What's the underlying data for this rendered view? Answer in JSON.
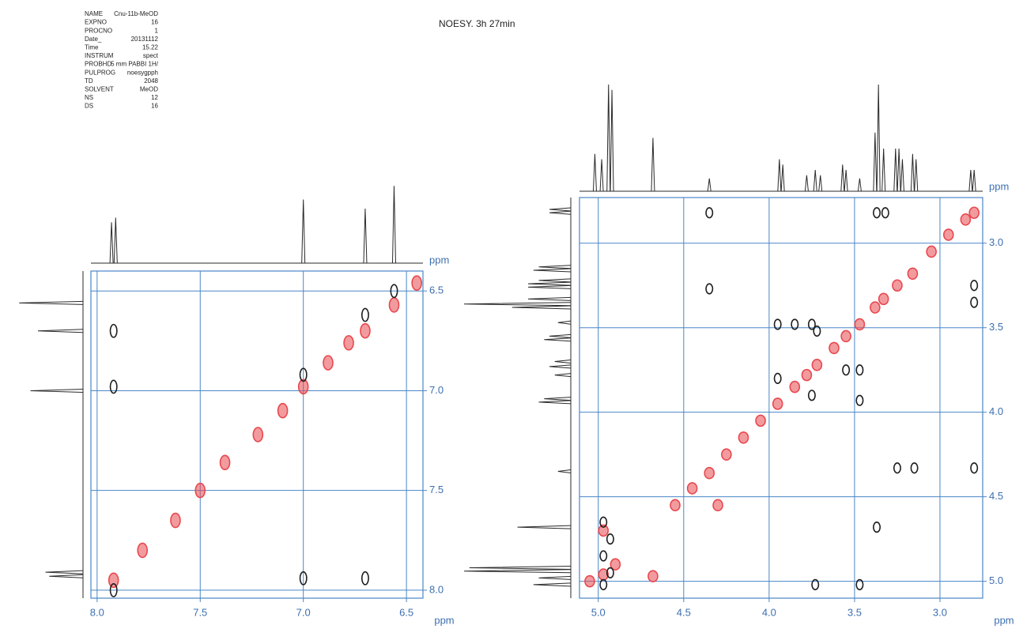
{
  "title": "NOESY. 3h 27min",
  "header": {
    "rows": [
      [
        "NAME",
        "Cnu-11b-MeOD"
      ],
      [
        "EXPNO",
        "16"
      ],
      [
        "PROCNO",
        "1"
      ],
      [
        "Date_",
        "20131112"
      ],
      [
        "Time",
        "15.22"
      ],
      [
        "INSTRUM",
        "spect"
      ],
      [
        "PROBHD",
        "5 mm PABBI 1H/"
      ],
      [
        "PULPROG",
        "noesygpph"
      ],
      [
        "TD",
        "2048"
      ],
      [
        "SOLVENT",
        "MeOD"
      ],
      [
        "NS",
        "12"
      ],
      [
        "DS",
        "16"
      ]
    ]
  },
  "chart_data": [
    {
      "type": "contour",
      "x_label": "ppm",
      "y_label": "ppm",
      "grid": true,
      "grid_color": "#4a86c8",
      "xlim": [
        8.03,
        6.42
      ],
      "ylim": [
        8.04,
        6.4
      ],
      "xticks": [
        {
          "value": 8.0,
          "label": "8.0"
        },
        {
          "value": 7.5,
          "label": "7.5"
        },
        {
          "value": 7.0,
          "label": "7.0"
        },
        {
          "value": 6.5,
          "label": "6.5"
        }
      ],
      "yticks": [
        {
          "value": 6.5,
          "label": "6.5"
        },
        {
          "value": 7.0,
          "label": "7.0"
        },
        {
          "value": 7.5,
          "label": "7.5"
        },
        {
          "value": 8.0,
          "label": "8.0"
        }
      ],
      "peaks": {
        "positive": {
          "color": "#e8484f",
          "x": [
            7.92,
            7.78,
            7.62,
            7.5,
            7.38,
            7.22,
            7.1,
            7.0,
            6.88,
            6.78,
            6.7,
            6.56,
            6.45
          ],
          "y": [
            7.95,
            7.8,
            7.65,
            7.5,
            7.36,
            7.22,
            7.1,
            6.98,
            6.86,
            6.76,
            6.7,
            6.57,
            6.46
          ]
        },
        "negative": {
          "color": "#1e1e1e",
          "x": [
            7.92,
            7.92,
            7.0,
            6.7,
            7.92,
            7.0,
            6.7,
            6.56
          ],
          "y": [
            6.7,
            6.98,
            7.94,
            7.94,
            8.0,
            6.92,
            6.62,
            6.5
          ]
        }
      },
      "projection": {
        "color": "#2a2a2a",
        "shift": [
          7.93,
          7.91,
          7.0,
          6.7,
          6.56
        ],
        "intensity": [
          0.45,
          0.5,
          0.7,
          0.6,
          0.85
        ]
      }
    },
    {
      "type": "contour",
      "x_label": "ppm",
      "y_label": "ppm",
      "grid": true,
      "grid_color": "#4a86c8",
      "xlim": [
        5.11,
        2.75
      ],
      "ylim": [
        5.1,
        2.73
      ],
      "xticks": [
        {
          "value": 5.0,
          "label": "5.0"
        },
        {
          "value": 4.5,
          "label": "4.5"
        },
        {
          "value": 4.0,
          "label": "4.0"
        },
        {
          "value": 3.5,
          "label": "3.5"
        },
        {
          "value": 3.0,
          "label": "3.0"
        }
      ],
      "yticks": [
        {
          "value": 3.0,
          "label": "3.0"
        },
        {
          "value": 3.5,
          "label": "3.5"
        },
        {
          "value": 4.0,
          "label": "4.0"
        },
        {
          "value": 4.5,
          "label": "4.5"
        },
        {
          "value": 5.0,
          "label": "5.0"
        }
      ],
      "peaks": {
        "positive": {
          "color": "#e8484f",
          "x": [
            5.05,
            4.97,
            4.9,
            4.68,
            4.97,
            4.55,
            4.45,
            4.35,
            4.25,
            4.15,
            4.05,
            3.95,
            3.85,
            3.78,
            3.72,
            3.62,
            3.55,
            3.47,
            3.38,
            3.33,
            3.25,
            3.16,
            3.05,
            2.95,
            2.85,
            2.8,
            4.3
          ],
          "y": [
            5.0,
            4.96,
            4.9,
            4.97,
            4.7,
            4.55,
            4.45,
            4.36,
            4.25,
            4.15,
            4.05,
            3.95,
            3.85,
            3.78,
            3.72,
            3.62,
            3.55,
            3.48,
            3.38,
            3.33,
            3.25,
            3.18,
            3.05,
            2.95,
            2.86,
            2.82,
            4.55
          ]
        },
        "negative": {
          "color": "#1e1e1e",
          "x": [
            4.35,
            3.37,
            3.32,
            4.35,
            3.95,
            3.85,
            3.75,
            3.72,
            3.95,
            3.75,
            3.55,
            3.47,
            3.47,
            3.25,
            3.15,
            2.8,
            2.8,
            2.8,
            3.37,
            3.47,
            3.73,
            4.97,
            4.97,
            4.97,
            4.93,
            4.93
          ],
          "y": [
            2.82,
            2.82,
            2.82,
            3.27,
            3.48,
            3.48,
            3.48,
            3.52,
            3.8,
            3.9,
            3.75,
            3.75,
            3.93,
            4.33,
            4.33,
            4.33,
            3.35,
            3.25,
            4.68,
            5.02,
            5.02,
            4.85,
            5.02,
            4.65,
            4.95,
            4.75
          ]
        }
      },
      "projection": {
        "color": "#2a2a2a",
        "shift": [
          5.02,
          4.98,
          4.94,
          4.92,
          4.68,
          4.35,
          3.94,
          3.92,
          3.78,
          3.73,
          3.7,
          3.57,
          3.55,
          3.47,
          3.38,
          3.36,
          3.33,
          3.26,
          3.24,
          3.22,
          3.16,
          3.14,
          2.82,
          2.8
        ],
        "intensity": [
          0.35,
          0.3,
          1.0,
          0.95,
          0.5,
          0.12,
          0.3,
          0.25,
          0.15,
          0.2,
          0.15,
          0.25,
          0.2,
          0.12,
          0.55,
          1.0,
          0.4,
          0.4,
          0.4,
          0.3,
          0.35,
          0.3,
          0.2,
          0.2
        ]
      }
    }
  ]
}
